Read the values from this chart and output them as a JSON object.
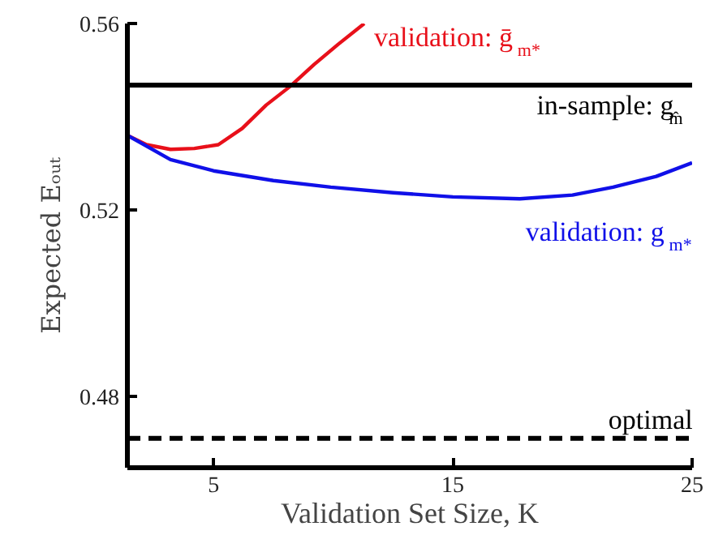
{
  "chart_data": {
    "type": "line",
    "xlabel": "Validation Set Size, K",
    "ylabel": "Expected Eₒᵤₜ",
    "xlim": [
      1.4,
      25
    ],
    "ylim": [
      0.4647,
      0.56
    ],
    "xticks": [
      5,
      15,
      25
    ],
    "yticks": [
      0.48,
      0.52,
      0.56
    ],
    "grid": false,
    "line_style": "solid",
    "series": [
      {
        "name": "validation: ḡ$_{m*}$",
        "color": "#e8101a",
        "x": [
          1.4,
          2.2,
          3.2,
          4.2,
          5.2,
          6.2,
          7.2,
          8.2,
          9.2,
          10.2,
          11.3
        ],
        "values": [
          0.536,
          0.534,
          0.533,
          0.5332,
          0.534,
          0.5375,
          0.5425,
          0.5465,
          0.5512,
          0.5555,
          0.56
        ]
      },
      {
        "name": "validation: g$_{m*}$",
        "color": "#1010e8",
        "x": [
          1.4,
          3.2,
          5,
          7.5,
          9.9,
          12.5,
          15,
          17.8,
          20,
          21.7,
          23.5,
          25
        ],
        "values": [
          0.536,
          0.5308,
          0.5284,
          0.5263,
          0.5249,
          0.5237,
          0.5228,
          0.5224,
          0.5232,
          0.5249,
          0.5272,
          0.5301
        ]
      }
    ],
    "ref_lines": [
      {
        "axis": "y",
        "value": 0.5468,
        "label": "in-sample: g$_{m̂}$",
        "color": "#000000",
        "line_style": "solid"
      },
      {
        "axis": "y",
        "value": 0.471,
        "label": "optimal",
        "color": "#000000",
        "line_style": "dashed"
      }
    ]
  }
}
